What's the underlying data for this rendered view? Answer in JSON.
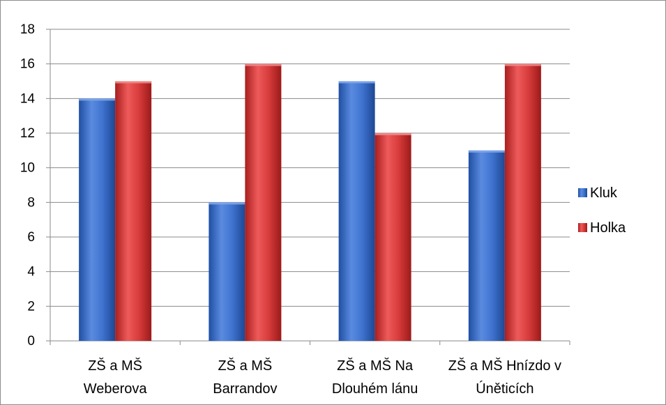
{
  "chart_data": {
    "type": "bar",
    "categories": [
      [
        "ZŠ a MŠ",
        "Weberova"
      ],
      [
        "ZŠ a MŠ",
        "Barrandov"
      ],
      [
        "ZŠ a MŠ Na",
        "Dlouhém lánu"
      ],
      [
        "ZŠ a MŠ Hnízdo v",
        "Úněticích"
      ]
    ],
    "series": [
      {
        "name": "Kluk",
        "values": [
          14,
          8,
          15,
          11
        ],
        "color": "#3b6fc9"
      },
      {
        "name": "Holka",
        "values": [
          15,
          16,
          12,
          16
        ],
        "color": "#d63b3b"
      }
    ],
    "ylim": [
      0,
      18
    ],
    "yticks": [
      0,
      2,
      4,
      6,
      8,
      10,
      12,
      14,
      16,
      18
    ],
    "grid": true,
    "legend": "right",
    "title": "",
    "xlabel": "",
    "ylabel": ""
  }
}
